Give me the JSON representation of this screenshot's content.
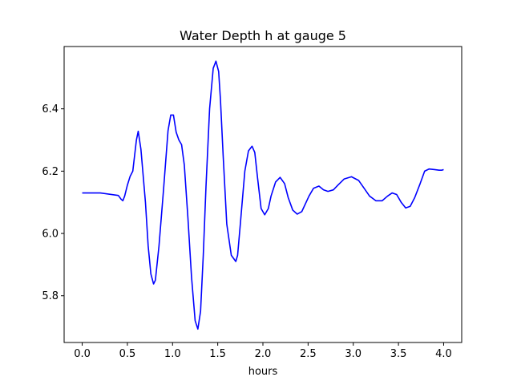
{
  "chart_data": {
    "type": "line",
    "title": "Water Depth h at gauge 5",
    "xlabel": "hours",
    "ylabel": "",
    "xlim": [
      -0.2,
      4.2
    ],
    "ylim": [
      5.65,
      6.6
    ],
    "xticks": [
      0.0,
      0.5,
      1.0,
      1.5,
      2.0,
      2.5,
      3.0,
      3.5,
      4.0
    ],
    "xtick_labels": [
      "0.0",
      "0.5",
      "1.0",
      "1.5",
      "2.0",
      "2.5",
      "3.0",
      "3.5",
      "4.0"
    ],
    "yticks": [
      5.8,
      6.0,
      6.2,
      6.4
    ],
    "ytick_labels": [
      "5.8",
      "6.0",
      "6.2",
      "6.4"
    ],
    "grid": false,
    "series": [
      {
        "color": "#0000ff",
        "x": [
          0.0,
          0.2,
          0.4,
          0.43,
          0.45,
          0.47,
          0.5,
          0.53,
          0.56,
          0.6,
          0.62,
          0.65,
          0.7,
          0.73,
          0.76,
          0.79,
          0.81,
          0.85,
          0.9,
          0.95,
          0.98,
          1.01,
          1.04,
          1.07,
          1.1,
          1.13,
          1.17,
          1.21,
          1.25,
          1.28,
          1.31,
          1.34,
          1.37,
          1.41,
          1.45,
          1.48,
          1.51,
          1.53,
          1.56,
          1.6,
          1.65,
          1.7,
          1.72,
          1.75,
          1.8,
          1.84,
          1.88,
          1.91,
          1.94,
          1.98,
          2.02,
          2.06,
          2.09,
          2.14,
          2.19,
          2.24,
          2.28,
          2.33,
          2.38,
          2.43,
          2.47,
          2.51,
          2.56,
          2.62,
          2.67,
          2.72,
          2.78,
          2.83,
          2.9,
          2.98,
          3.06,
          3.12,
          3.18,
          3.25,
          3.32,
          3.38,
          3.43,
          3.48,
          3.53,
          3.58,
          3.63,
          3.68,
          3.74,
          3.79,
          3.84,
          3.9,
          3.95,
          3.98,
          4.0
        ],
        "y": [
          6.13,
          6.13,
          6.122,
          6.11,
          6.105,
          6.12,
          6.155,
          6.183,
          6.2,
          6.3,
          6.328,
          6.27,
          6.1,
          5.96,
          5.87,
          5.838,
          5.85,
          5.96,
          6.14,
          6.33,
          6.38,
          6.38,
          6.325,
          6.3,
          6.285,
          6.22,
          6.05,
          5.86,
          5.72,
          5.693,
          5.75,
          5.93,
          6.15,
          6.4,
          6.53,
          6.553,
          6.52,
          6.43,
          6.25,
          6.03,
          5.93,
          5.91,
          5.93,
          6.03,
          6.2,
          6.265,
          6.28,
          6.26,
          6.18,
          6.08,
          6.06,
          6.08,
          6.12,
          6.165,
          6.18,
          6.16,
          6.115,
          6.075,
          6.062,
          6.07,
          6.095,
          6.12,
          6.145,
          6.152,
          6.14,
          6.135,
          6.14,
          6.155,
          6.175,
          6.182,
          6.17,
          6.145,
          6.12,
          6.105,
          6.105,
          6.12,
          6.13,
          6.125,
          6.1,
          6.082,
          6.087,
          6.115,
          6.16,
          6.2,
          6.207,
          6.205,
          6.203,
          6.203,
          6.205
        ]
      }
    ]
  }
}
